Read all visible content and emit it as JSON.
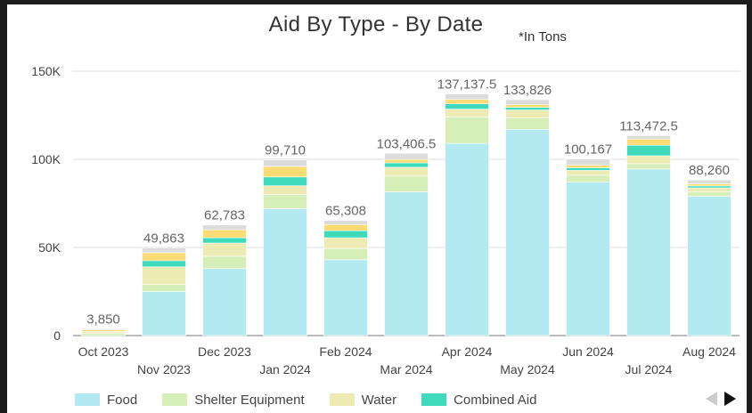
{
  "title": "Aid By Type - By Date",
  "subtitle": "*In Tons",
  "legend": {
    "items": [
      {
        "label": "Food",
        "color": "#b3e9f0"
      },
      {
        "label": "Shelter Equipment",
        "color": "#d6efb8"
      },
      {
        "label": "Water",
        "color": "#eeeab3"
      },
      {
        "label": "Combined Aid",
        "color": "#3fd9bb"
      }
    ]
  },
  "pager": {
    "prev_icon": "triangle-left-icon",
    "next_icon": "triangle-right-icon"
  },
  "chart_data": {
    "type": "bar",
    "stacked": true,
    "title": "Aid By Type - By Date",
    "subtitle": "*In Tons",
    "categories": [
      "Oct 2023",
      "Nov 2023",
      "Dec 2023",
      "Jan 2024",
      "Feb 2024",
      "Mar 2024",
      "Apr 2024",
      "May 2024",
      "Jun 2024",
      "Jul 2024",
      "Aug 2024"
    ],
    "series": [
      {
        "name": "Food",
        "color": "#b3e9f0",
        "values": [
          0,
          25000,
          38000,
          72000,
          43000,
          81500,
          109000,
          117000,
          87000,
          94500,
          79000
        ]
      },
      {
        "name": "Shelter Equipment",
        "color": "#d6efb8",
        "values": [
          1500,
          4000,
          7000,
          8000,
          6500,
          9000,
          15000,
          6500,
          4000,
          3000,
          2500
        ]
      },
      {
        "name": "Water",
        "color": "#eeeab3",
        "values": [
          800,
          10000,
          7500,
          5000,
          6000,
          5000,
          4500,
          4500,
          2700,
          4500,
          2300
        ]
      },
      {
        "name": "Combined Aid",
        "color": "#3fd9bb",
        "values": [
          0,
          3500,
          3000,
          5000,
          4000,
          2500,
          3000,
          1500,
          1500,
          6000,
          1100
        ]
      },
      {
        "name": "",
        "color": "#fcdb72",
        "values": [
          900,
          4500,
          4500,
          6000,
          3500,
          1900,
          2500,
          1500,
          1500,
          3500,
          1200
        ]
      },
      {
        "name": "",
        "color": "#dcdcdc",
        "values": [
          650,
          2863,
          2783,
          3710,
          2308,
          3506.5,
          3137.5,
          2826,
          3467,
          1972.5,
          2160
        ]
      }
    ],
    "totals": [
      "3,850",
      "49,863",
      "62,783",
      "99,710",
      "65,308",
      "103,406.5",
      "137,137.5",
      "133,826",
      "100,167",
      "113,472.5",
      "88,260"
    ],
    "y_ticks": [
      0,
      50000,
      100000,
      150000
    ],
    "y_tick_labels": [
      "0",
      "50K",
      "100K",
      "150K"
    ],
    "ylim": [
      0,
      150000
    ],
    "grid": true,
    "legend_position": "bottom-left"
  }
}
